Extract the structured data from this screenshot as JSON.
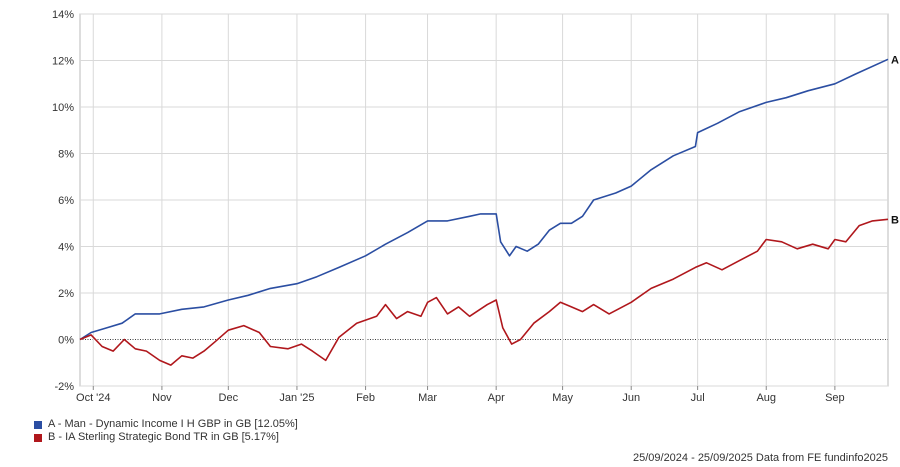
{
  "chart_data": {
    "type": "line",
    "y_unit": "%",
    "ylim": [
      -2,
      14
    ],
    "y_ticks": [
      -2,
      0,
      2,
      4,
      6,
      8,
      10,
      12,
      14
    ],
    "y_tick_labels": [
      "-2%",
      "0%",
      "2%",
      "4%",
      "6%",
      "8%",
      "10%",
      "12%",
      "14%"
    ],
    "xlim": [
      "2024-09-25",
      "2025-09-25"
    ],
    "x_ticks": [
      {
        "date": "2024-10-01",
        "label": "Oct '24"
      },
      {
        "date": "2024-11-01",
        "label": "Nov"
      },
      {
        "date": "2024-12-01",
        "label": "Dec"
      },
      {
        "date": "2025-01-01",
        "label": "Jan '25"
      },
      {
        "date": "2025-02-01",
        "label": "Feb"
      },
      {
        "date": "2025-03-01",
        "label": "Mar"
      },
      {
        "date": "2025-04-01",
        "label": "Apr"
      },
      {
        "date": "2025-05-01",
        "label": "May"
      },
      {
        "date": "2025-06-01",
        "label": "Jun"
      },
      {
        "date": "2025-07-01",
        "label": "Jul"
      },
      {
        "date": "2025-08-01",
        "label": "Aug"
      },
      {
        "date": "2025-09-01",
        "label": "Sep"
      }
    ],
    "grid": true,
    "zero_line": true,
    "series": [
      {
        "name": "A - Man - Dynamic Income I H GBP in GB [12.05%]",
        "end_label": "A",
        "color": "#2b4ea2",
        "points": [
          [
            "2024-09-25",
            0.0
          ],
          [
            "2024-09-30",
            0.3
          ],
          [
            "2024-10-07",
            0.5
          ],
          [
            "2024-10-14",
            0.7
          ],
          [
            "2024-10-20",
            1.1
          ],
          [
            "2024-10-31",
            1.1
          ],
          [
            "2024-11-10",
            1.3
          ],
          [
            "2024-11-20",
            1.4
          ],
          [
            "2024-12-01",
            1.7
          ],
          [
            "2024-12-10",
            1.9
          ],
          [
            "2024-12-20",
            2.2
          ],
          [
            "2025-01-01",
            2.4
          ],
          [
            "2025-01-10",
            2.7
          ],
          [
            "2025-01-20",
            3.1
          ],
          [
            "2025-02-01",
            3.6
          ],
          [
            "2025-02-10",
            4.1
          ],
          [
            "2025-02-20",
            4.6
          ],
          [
            "2025-03-01",
            5.1
          ],
          [
            "2025-03-10",
            5.1
          ],
          [
            "2025-03-20",
            5.3
          ],
          [
            "2025-03-25",
            5.4
          ],
          [
            "2025-04-01",
            5.4
          ],
          [
            "2025-04-03",
            4.2
          ],
          [
            "2025-04-07",
            3.6
          ],
          [
            "2025-04-10",
            4.0
          ],
          [
            "2025-04-15",
            3.8
          ],
          [
            "2025-04-20",
            4.1
          ],
          [
            "2025-04-25",
            4.7
          ],
          [
            "2025-04-30",
            5.0
          ],
          [
            "2025-05-05",
            5.0
          ],
          [
            "2025-05-10",
            5.3
          ],
          [
            "2025-05-15",
            6.0
          ],
          [
            "2025-05-25",
            6.3
          ],
          [
            "2025-06-01",
            6.6
          ],
          [
            "2025-06-10",
            7.3
          ],
          [
            "2025-06-20",
            7.9
          ],
          [
            "2025-06-30",
            8.3
          ],
          [
            "2025-07-01",
            8.9
          ],
          [
            "2025-07-10",
            9.3
          ],
          [
            "2025-07-20",
            9.8
          ],
          [
            "2025-08-01",
            10.2
          ],
          [
            "2025-08-10",
            10.4
          ],
          [
            "2025-08-20",
            10.7
          ],
          [
            "2025-09-01",
            11.0
          ],
          [
            "2025-09-10",
            11.4
          ],
          [
            "2025-09-25",
            12.05
          ]
        ]
      },
      {
        "name": "B - IA Sterling Strategic Bond TR in GB [5.17%]",
        "end_label": "B",
        "color": "#b0171c",
        "points": [
          [
            "2024-09-25",
            0.0
          ],
          [
            "2024-09-30",
            0.2
          ],
          [
            "2024-10-05",
            -0.3
          ],
          [
            "2024-10-10",
            -0.5
          ],
          [
            "2024-10-15",
            0.0
          ],
          [
            "2024-10-20",
            -0.4
          ],
          [
            "2024-10-25",
            -0.5
          ],
          [
            "2024-10-31",
            -0.9
          ],
          [
            "2024-11-05",
            -1.1
          ],
          [
            "2024-11-10",
            -0.7
          ],
          [
            "2024-11-15",
            -0.8
          ],
          [
            "2024-11-20",
            -0.5
          ],
          [
            "2024-11-25",
            -0.1
          ],
          [
            "2024-12-01",
            0.4
          ],
          [
            "2024-12-08",
            0.6
          ],
          [
            "2024-12-15",
            0.3
          ],
          [
            "2024-12-20",
            -0.3
          ],
          [
            "2024-12-28",
            -0.4
          ],
          [
            "2025-01-03",
            -0.2
          ],
          [
            "2025-01-08",
            -0.5
          ],
          [
            "2025-01-14",
            -0.9
          ],
          [
            "2025-01-20",
            0.1
          ],
          [
            "2025-01-28",
            0.7
          ],
          [
            "2025-02-06",
            1.0
          ],
          [
            "2025-02-10",
            1.5
          ],
          [
            "2025-02-15",
            0.9
          ],
          [
            "2025-02-20",
            1.2
          ],
          [
            "2025-02-26",
            1.0
          ],
          [
            "2025-03-01",
            1.6
          ],
          [
            "2025-03-05",
            1.8
          ],
          [
            "2025-03-10",
            1.1
          ],
          [
            "2025-03-15",
            1.4
          ],
          [
            "2025-03-20",
            1.0
          ],
          [
            "2025-03-28",
            1.5
          ],
          [
            "2025-04-01",
            1.7
          ],
          [
            "2025-04-04",
            0.5
          ],
          [
            "2025-04-08",
            -0.2
          ],
          [
            "2025-04-12",
            0.0
          ],
          [
            "2025-04-18",
            0.7
          ],
          [
            "2025-04-25",
            1.2
          ],
          [
            "2025-04-30",
            1.6
          ],
          [
            "2025-05-05",
            1.4
          ],
          [
            "2025-05-10",
            1.2
          ],
          [
            "2025-05-15",
            1.5
          ],
          [
            "2025-05-22",
            1.1
          ],
          [
            "2025-06-01",
            1.6
          ],
          [
            "2025-06-10",
            2.2
          ],
          [
            "2025-06-20",
            2.6
          ],
          [
            "2025-06-30",
            3.1
          ],
          [
            "2025-07-05",
            3.3
          ],
          [
            "2025-07-12",
            3.0
          ],
          [
            "2025-07-20",
            3.4
          ],
          [
            "2025-07-28",
            3.8
          ],
          [
            "2025-08-01",
            4.3
          ],
          [
            "2025-08-08",
            4.2
          ],
          [
            "2025-08-15",
            3.9
          ],
          [
            "2025-08-22",
            4.1
          ],
          [
            "2025-08-29",
            3.9
          ],
          [
            "2025-09-01",
            4.3
          ],
          [
            "2025-09-06",
            4.2
          ],
          [
            "2025-09-12",
            4.9
          ],
          [
            "2025-09-18",
            5.1
          ],
          [
            "2025-09-25",
            5.17
          ]
        ]
      }
    ]
  },
  "legend": {
    "items": [
      {
        "label": "A - Man - Dynamic Income I H GBP in GB [12.05%]",
        "color": "#2b4ea2"
      },
      {
        "label": "B - IA Sterling Strategic Bond TR in GB [5.17%]",
        "color": "#b0171c"
      }
    ]
  },
  "footer": {
    "text": "25/09/2024 - 25/09/2025 Data from FE fundinfo2025"
  }
}
